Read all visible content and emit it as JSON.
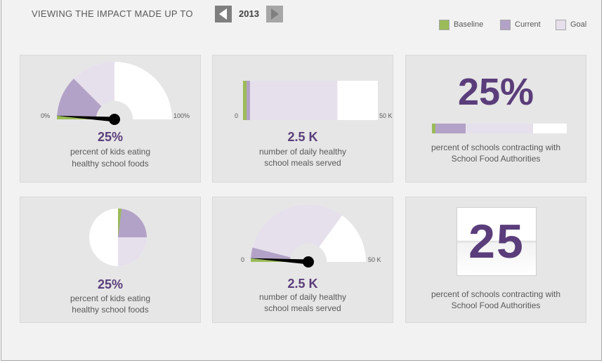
{
  "header": {
    "title": "VIEWING THE IMPACT MADE UP TO",
    "year": "2013"
  },
  "colors": {
    "baseline": "#9bbb59",
    "current": "#b3a2c7",
    "goal": "#e6e0ec",
    "accent": "#5a3d7a"
  },
  "legend": [
    {
      "label": "Baseline",
      "color": "#9bbb59"
    },
    {
      "label": "Current",
      "color": "#b3a2c7"
    },
    {
      "label": "Goal",
      "color": "#e6e0ec"
    }
  ],
  "cards": [
    {
      "value": "25%",
      "desc1": "percent of kids eating",
      "desc2": "healthy school foods",
      "axis_min": "0%",
      "axis_max": "100%"
    },
    {
      "value": "2.5 K",
      "desc1": "number of daily healthy",
      "desc2": "school meals served",
      "axis_min": "0",
      "axis_max": "50 K"
    },
    {
      "value": "25%",
      "desc1": "percent of schools contracting with",
      "desc2": "School Food Authorities"
    },
    {
      "value": "25%",
      "desc1": "percent of kids eating",
      "desc2": "healthy school foods"
    },
    {
      "value": "2.5 K",
      "desc1": "number of daily healthy",
      "desc2": "school meals served",
      "axis_min": "0",
      "axis_max": "50 K"
    },
    {
      "value": "25",
      "desc1": "percent of schools contracting with",
      "desc2": "School Food Authorities"
    }
  ],
  "chart_data": [
    {
      "type": "gauge",
      "min": 0,
      "max": 100,
      "baseline": 2,
      "current": 25,
      "goal": 50,
      "needle": 2
    },
    {
      "type": "bar",
      "min": 0,
      "max": 50000,
      "baseline": 1000,
      "current": 2500,
      "goal": 35000
    },
    {
      "type": "bar",
      "min": 0,
      "max": 100,
      "baseline": 2,
      "current": 25,
      "goal": 75
    },
    {
      "type": "pie",
      "baseline": 2,
      "current": 25,
      "goal": 50
    },
    {
      "type": "gauge",
      "min": 0,
      "max": 50000,
      "baseline": 1000,
      "current": 2500,
      "goal": 35000,
      "needle": 1000
    }
  ]
}
